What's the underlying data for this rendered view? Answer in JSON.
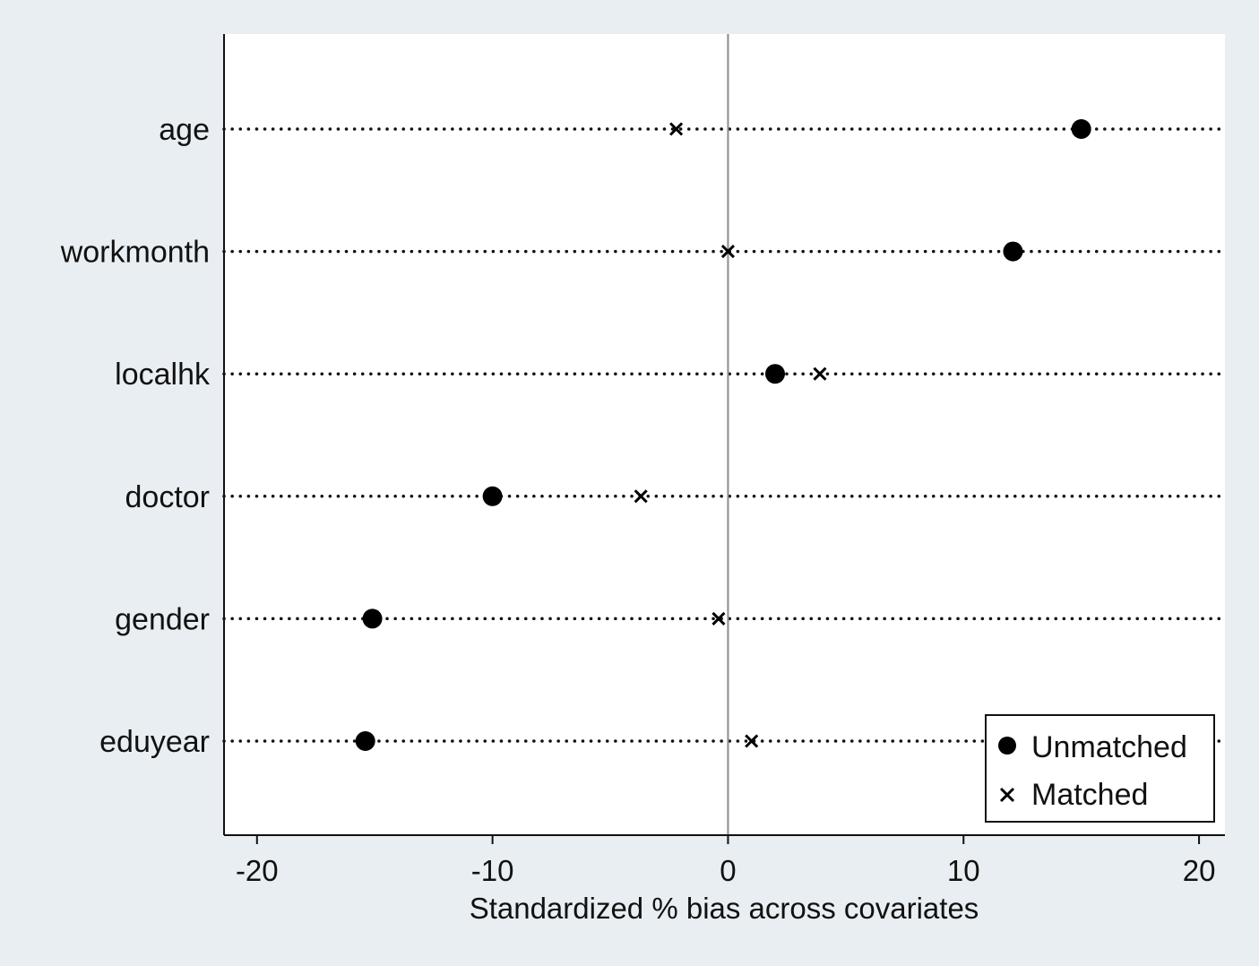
{
  "chart_data": {
    "type": "scatter",
    "title": "",
    "xlabel": "Standardized % bias across covariates",
    "ylabel": "",
    "xlim": [
      -21.4,
      21.1
    ],
    "xticks": [
      -20,
      -10,
      0,
      10,
      20
    ],
    "x_tick_labels": [
      "-20",
      "-10",
      "0",
      "10",
      "20"
    ],
    "categories": [
      "age",
      "workmonth",
      "localhk",
      "doctor",
      "gender",
      "eduyear"
    ],
    "series": [
      {
        "name": "Unmatched",
        "marker": "circle",
        "values": [
          15.0,
          12.1,
          2.0,
          -10.0,
          -15.1,
          -15.4
        ]
      },
      {
        "name": "Matched",
        "marker": "x",
        "values": [
          -2.2,
          0.0,
          3.9,
          -3.7,
          -0.4,
          1.0
        ]
      }
    ],
    "reference_line_x": 0,
    "grid": "dotted horizontal lines per covariate",
    "legend_position": "bottom-right",
    "colors": {
      "background": "#e8eef2",
      "plot_area": "#ffffff",
      "marker": "#000000",
      "reference_line": "#8c8c8c"
    }
  }
}
